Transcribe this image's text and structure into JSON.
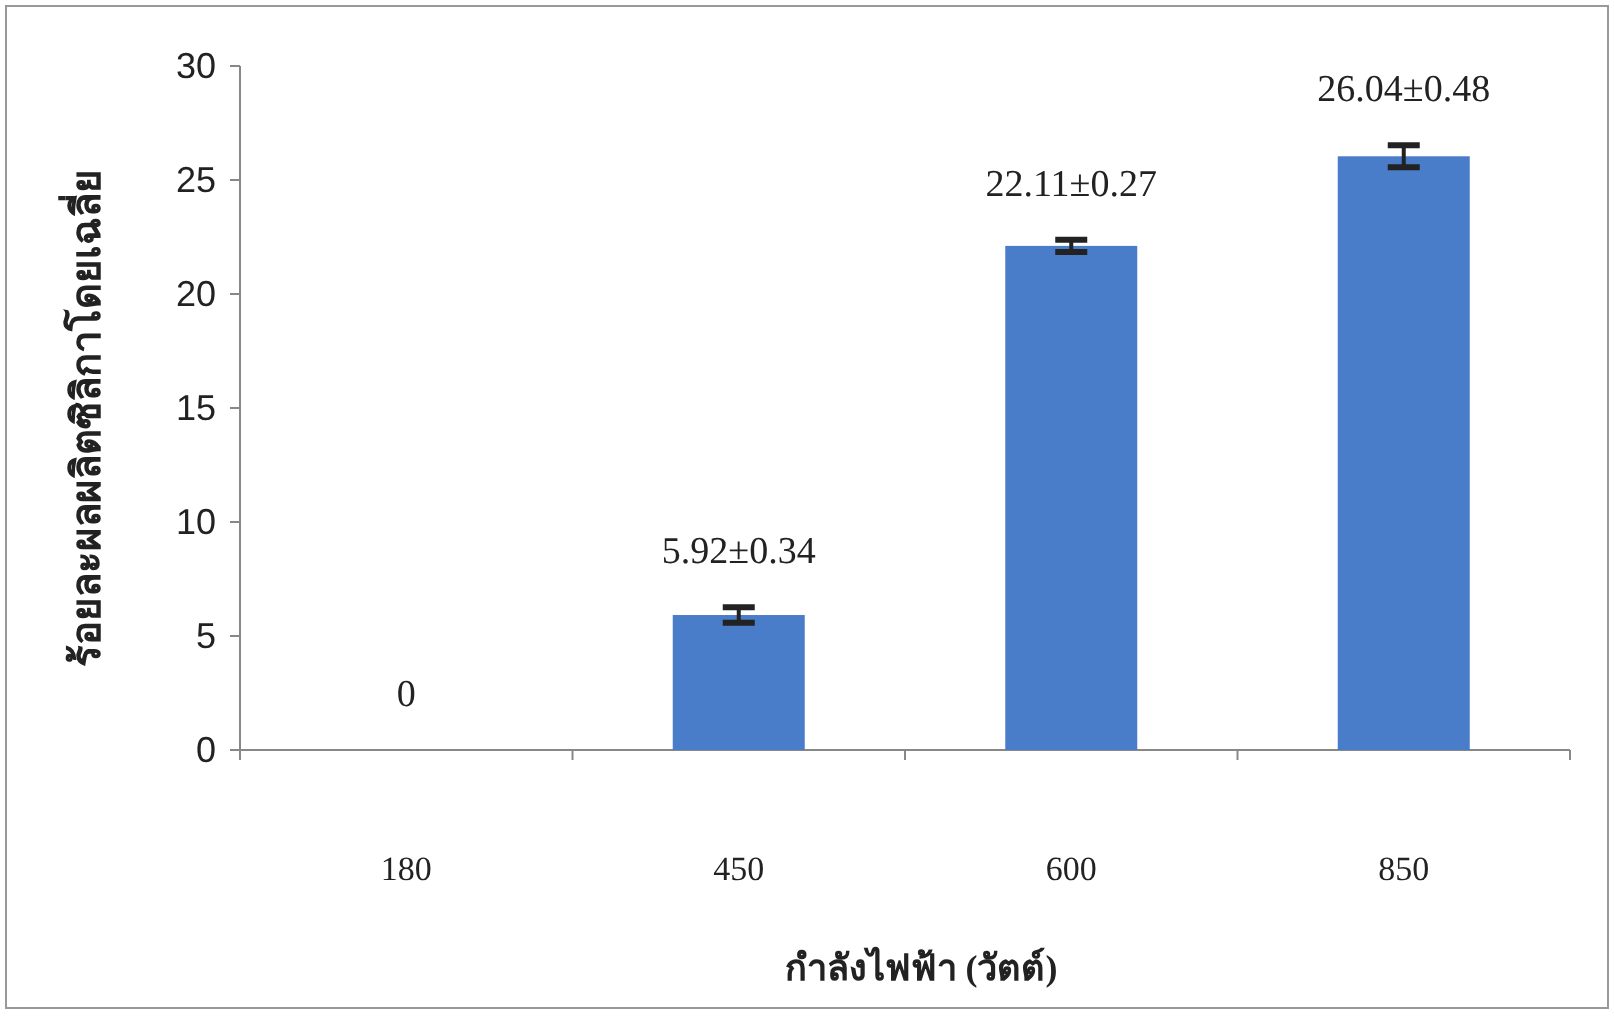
{
  "chart_data": {
    "type": "bar",
    "xlabel": "กำลังไฟฟ้า (วัตต์)",
    "ylabel": "ร้อยละผลผลิตซิลิกาโดยเฉลี่ย",
    "categories": [
      "180",
      "450",
      "600",
      "850"
    ],
    "values": [
      0,
      5.92,
      22.11,
      26.04
    ],
    "errors": [
      null,
      0.34,
      0.27,
      0.48
    ],
    "value_labels": [
      "0",
      "5.92±0.34",
      "22.11±0.27",
      "26.04±0.48"
    ],
    "color": "#4a7dc9",
    "ylim": [
      0,
      30
    ],
    "yticks": [
      0,
      5,
      10,
      15,
      20,
      25,
      30
    ]
  }
}
